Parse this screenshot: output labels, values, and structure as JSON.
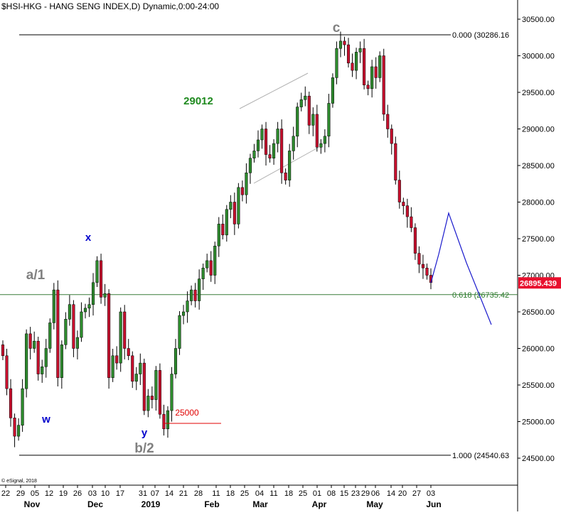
{
  "header": {
    "title": "$HSI-HKG - HANG SENG INDEX,D) Dynamic,0:00-24:00"
  },
  "footer": {
    "credit": "© eSignal, 2018"
  },
  "colors": {
    "up": "#2e8b2e",
    "down": "#c8102e",
    "wick": "#000000",
    "fib_line": "#3a7d3a",
    "fib_text": "#2a7a2a",
    "price_box": "#e8102e",
    "wave_blue": "#0000cc",
    "wave_gray": "#808080",
    "wave_green": "#1f8a1f",
    "wave_red": "#e00000",
    "forecast": "#1a1acc",
    "channel": "#b0b0b0"
  },
  "chart_data": {
    "type": "candlestick",
    "ylim": [
      24200,
      30650
    ],
    "y_ticks": [
      "30500.00",
      "30000.00",
      "29500.00",
      "29000.00",
      "28500.00",
      "28000.00",
      "27500.00",
      "27000.00",
      "26500.00",
      "26000.00",
      "25500.00",
      "25000.00",
      "24500.00"
    ],
    "x_day_labels": [
      "22",
      "29",
      "05",
      "12",
      "19",
      "26",
      "03",
      "10",
      "17",
      "31",
      "07",
      "14",
      "21",
      "28",
      "11",
      "18",
      "25",
      "04",
      "11",
      "18",
      "25",
      "01",
      "08",
      "15",
      "23",
      "29",
      "06",
      "14",
      "20",
      "27",
      "03"
    ],
    "x_month_labels": [
      "Nov",
      "Dec",
      "2019",
      "Feb",
      "Mar",
      "Apr",
      "May",
      "Jun"
    ],
    "fib_levels": [
      {
        "label": "0.000 (30286.16",
        "value": 30286.16
      },
      {
        "label": "0.618 (26735.42",
        "value": 26735.42
      },
      {
        "label": "1.000 (24540.63",
        "value": 24540.63
      }
    ],
    "last_price": {
      "label": "26895.439",
      "value": 26895.439
    },
    "wave_labels": [
      {
        "text": "c",
        "color": "gray"
      },
      {
        "text": "a/1",
        "color": "gray"
      },
      {
        "text": "b/2",
        "color": "gray"
      },
      {
        "text": "x",
        "color": "blue"
      },
      {
        "text": "w",
        "color": "blue"
      },
      {
        "text": "y",
        "color": "blue"
      },
      {
        "text": "29012",
        "color": "green"
      },
      {
        "text": "25000",
        "color": "red"
      }
    ],
    "closes": [
      25900,
      25450,
      25050,
      24800,
      24950,
      25450,
      26200,
      26000,
      26100,
      25650,
      25750,
      26000,
      26350,
      26800,
      25600,
      26050,
      26400,
      26600,
      26000,
      26150,
      26500,
      26550,
      26600,
      26900,
      27200,
      26700,
      26750,
      25600,
      25900,
      25800,
      26500,
      26000,
      25900,
      25550,
      25650,
      25800,
      25150,
      25350,
      25300,
      25700,
      25100,
      24900,
      25150,
      25650,
      26000,
      26450,
      26500,
      26650,
      26800,
      26650,
      26950,
      27100,
      27200,
      27000,
      27400,
      27700,
      27550,
      27900,
      28000,
      27700,
      28200,
      28100,
      28400,
      28600,
      28700,
      28850,
      29000,
      28650,
      28600,
      28800,
      29000,
      28400,
      28300,
      28700,
      28900,
      29300,
      29400,
      29450,
      29050,
      29200,
      28750,
      28800,
      28900,
      29350,
      29700,
      30100,
      30200,
      30150,
      29900,
      29800,
      30050,
      30100,
      29600,
      29550,
      29850,
      29700,
      30000,
      29200,
      29000,
      28800,
      28300,
      28000,
      27950,
      27800,
      27650,
      27300,
      27150,
      27100,
      27000,
      26900
    ]
  }
}
